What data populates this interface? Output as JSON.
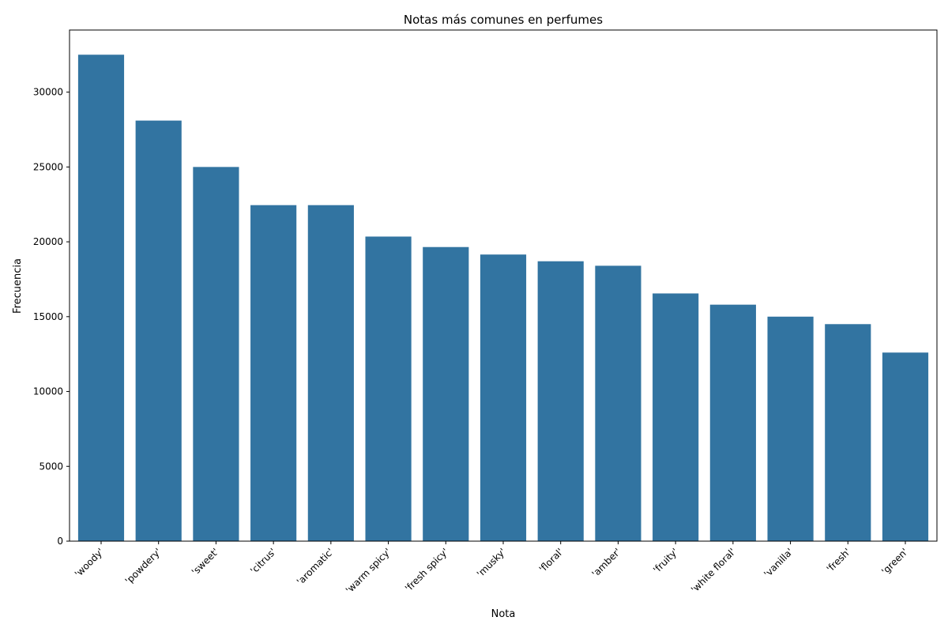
{
  "chart_data": {
    "type": "bar",
    "title": "Notas más comunes en perfumes",
    "xlabel": "Nota",
    "ylabel": "Frecuencia",
    "categories": [
      "'woody'",
      "'powdery'",
      "'sweet'",
      "'citrus'",
      "'aromatic'",
      "'warm spicy'",
      "'fresh spicy'",
      "'musky'",
      "'floral'",
      "'amber'",
      "'fruity'",
      "'white floral'",
      "'vanilla'",
      "'fresh'",
      "'green'"
    ],
    "values": [
      32500,
      28100,
      25000,
      22450,
      22450,
      20350,
      19650,
      19150,
      18700,
      18400,
      16550,
      15800,
      15000,
      14500,
      12600
    ],
    "ylim": [
      0,
      34150
    ],
    "yticks": [
      0,
      5000,
      10000,
      15000,
      20000,
      25000,
      30000
    ],
    "ytick_labels": [
      "0",
      "5000",
      "10000",
      "15000",
      "20000",
      "25000",
      "30000"
    ],
    "bar_color": "#3274a1",
    "grid": false,
    "legend": false
  }
}
